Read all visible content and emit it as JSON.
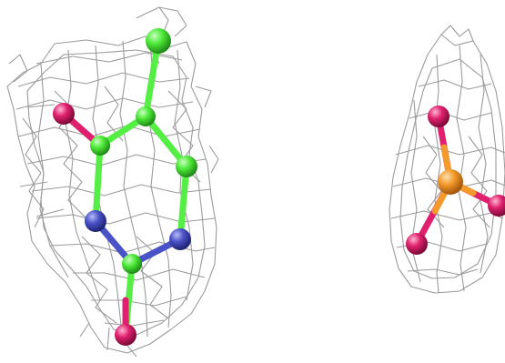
{
  "figure": {
    "description_visible_text": "",
    "colors": {
      "background": "#ffffff",
      "mesh": "#9b9b9b",
      "carbon": "#55ee44",
      "nitrogen": "#4a52c8",
      "oxygen": "#e0206e",
      "phosphorus": "#f39a2b"
    },
    "panels": [
      {
        "name": "pyrimidine-base-density"
      },
      {
        "name": "phosphate-density"
      }
    ]
  }
}
